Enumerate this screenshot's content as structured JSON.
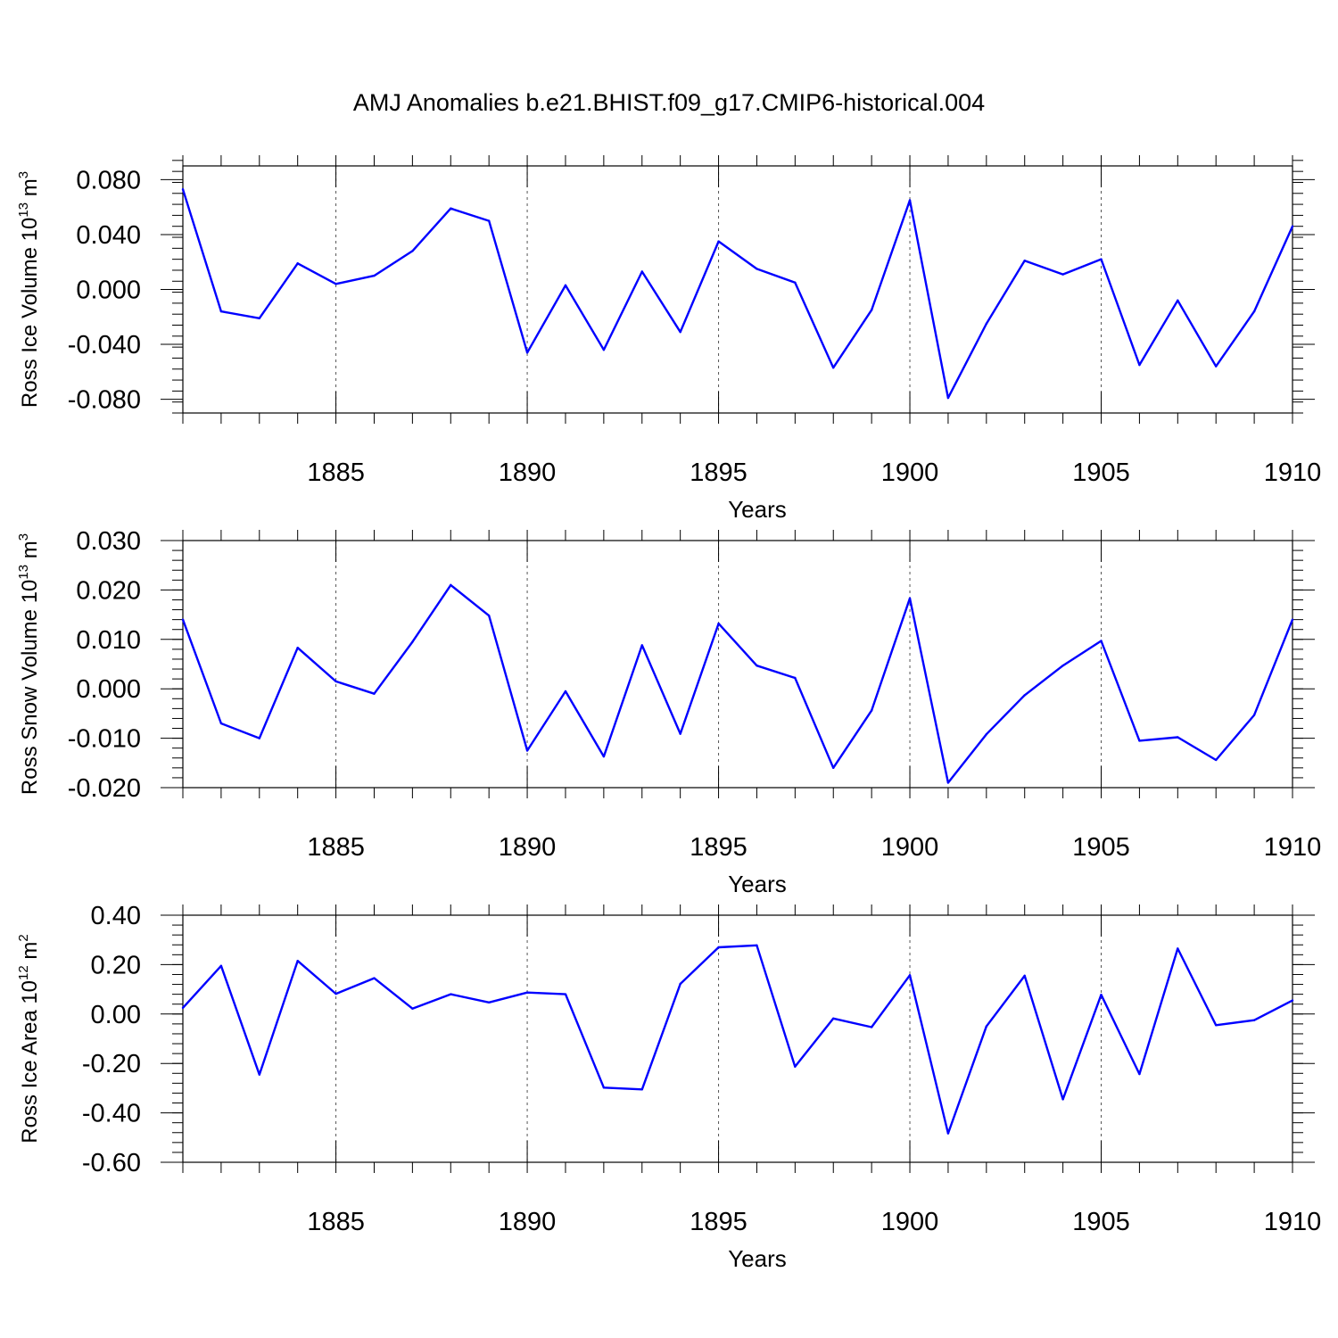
{
  "figure": {
    "title": "AMJ Anomalies b.e21.BHIST.f09_g17.CMIP6-historical.004"
  },
  "chart_data": [
    {
      "type": "line",
      "title": "AMJ Anomalies b.e21.BHIST.f09_g17.CMIP6-historical.004",
      "xlabel": "Years",
      "ylabel": {
        "prefix": "Ross Ice Volume 10",
        "exp1": "13",
        "mid": " m",
        "exp2": "3"
      },
      "x": [
        1881,
        1882,
        1883,
        1884,
        1885,
        1886,
        1887,
        1888,
        1889,
        1890,
        1891,
        1892,
        1893,
        1894,
        1895,
        1896,
        1897,
        1898,
        1899,
        1900,
        1901,
        1902,
        1903,
        1904,
        1905,
        1906,
        1907,
        1908,
        1909,
        1910
      ],
      "series": [
        {
          "color": "#0000ff",
          "values": [
            0.073,
            -0.016,
            -0.021,
            0.019,
            0.004,
            0.01,
            0.028,
            0.059,
            0.05,
            -0.046,
            0.003,
            -0.044,
            0.013,
            -0.031,
            0.035,
            0.015,
            0.005,
            -0.057,
            -0.015,
            0.065,
            -0.079,
            -0.025,
            0.021,
            0.011,
            0.022,
            -0.055,
            -0.008,
            -0.056,
            -0.016,
            0.046
          ]
        }
      ],
      "xlim": [
        1881,
        1910
      ],
      "ylim": [
        -0.09,
        0.09
      ],
      "xticks": [
        1885,
        1890,
        1895,
        1900,
        1905,
        1910
      ],
      "xtick_labels": [
        "1885",
        "1890",
        "1895",
        "1900",
        "1905",
        "1910"
      ],
      "yticks": [
        0.08,
        0.04,
        0.0,
        -0.04,
        -0.08
      ],
      "ytick_labels": [
        "0.080",
        "0.040",
        "0.000",
        "-0.040",
        "-0.080"
      ],
      "grid": "dashed vertical lines at labeled years"
    },
    {
      "type": "line",
      "xlabel": "Years",
      "ylabel": {
        "prefix": "Ross Snow Volume 10",
        "exp1": "13",
        "mid": " m",
        "exp2": "3"
      },
      "x": [
        1881,
        1882,
        1883,
        1884,
        1885,
        1886,
        1887,
        1888,
        1889,
        1890,
        1891,
        1892,
        1893,
        1894,
        1895,
        1896,
        1897,
        1898,
        1899,
        1900,
        1901,
        1902,
        1903,
        1904,
        1905,
        1906,
        1907,
        1908,
        1909,
        1910
      ],
      "series": [
        {
          "color": "#0000ff",
          "values": [
            0.014,
            -0.007,
            -0.01,
            0.0083,
            0.0015,
            -0.001,
            0.0095,
            0.021,
            0.0148,
            -0.0125,
            -0.0005,
            -0.0137,
            0.0088,
            -0.0091,
            0.0132,
            0.0047,
            0.0022,
            -0.016,
            -0.0044,
            0.0183,
            -0.019,
            -0.0092,
            -0.0013,
            0.0047,
            0.0097,
            -0.0105,
            -0.0098,
            -0.0144,
            -0.0053,
            0.014
          ]
        }
      ],
      "xlim": [
        1881,
        1910
      ],
      "ylim": [
        -0.02,
        0.03
      ],
      "xticks": [
        1885,
        1890,
        1895,
        1900,
        1905,
        1910
      ],
      "xtick_labels": [
        "1885",
        "1890",
        "1895",
        "1900",
        "1905",
        "1910"
      ],
      "yticks": [
        0.03,
        0.02,
        0.01,
        0.0,
        -0.01,
        -0.02
      ],
      "ytick_labels": [
        "0.030",
        "0.020",
        "0.010",
        "0.000",
        "-0.010",
        "-0.020"
      ],
      "grid": "dashed vertical lines at labeled years"
    },
    {
      "type": "line",
      "xlabel": "Years",
      "ylabel": {
        "prefix": "Ross Ice Area 10",
        "exp1": "12",
        "mid": " m",
        "exp2": "2"
      },
      "x": [
        1881,
        1882,
        1883,
        1884,
        1885,
        1886,
        1887,
        1888,
        1889,
        1890,
        1891,
        1892,
        1893,
        1894,
        1895,
        1896,
        1897,
        1898,
        1899,
        1900,
        1901,
        1902,
        1903,
        1904,
        1905,
        1906,
        1907,
        1908,
        1909,
        1910
      ],
      "series": [
        {
          "color": "#0000ff",
          "values": [
            0.025,
            0.195,
            -0.245,
            0.215,
            0.082,
            0.145,
            0.022,
            0.08,
            0.047,
            0.087,
            0.08,
            -0.298,
            -0.305,
            0.122,
            0.27,
            0.278,
            -0.213,
            -0.018,
            -0.053,
            0.157,
            -0.483,
            -0.05,
            0.155,
            -0.345,
            0.078,
            -0.243,
            0.265,
            -0.045,
            -0.025,
            0.055
          ]
        }
      ],
      "xlim": [
        1881,
        1910
      ],
      "ylim": [
        -0.6,
        0.4
      ],
      "xticks": [
        1885,
        1890,
        1895,
        1900,
        1905,
        1910
      ],
      "xtick_labels": [
        "1885",
        "1890",
        "1895",
        "1900",
        "1905",
        "1910"
      ],
      "yticks": [
        0.4,
        0.2,
        0.0,
        -0.2,
        -0.4,
        -0.6
      ],
      "ytick_labels": [
        "0.40",
        "0.20",
        "0.00",
        "-0.20",
        "-0.40",
        "-0.60"
      ],
      "grid": "dashed vertical lines at labeled years"
    }
  ]
}
